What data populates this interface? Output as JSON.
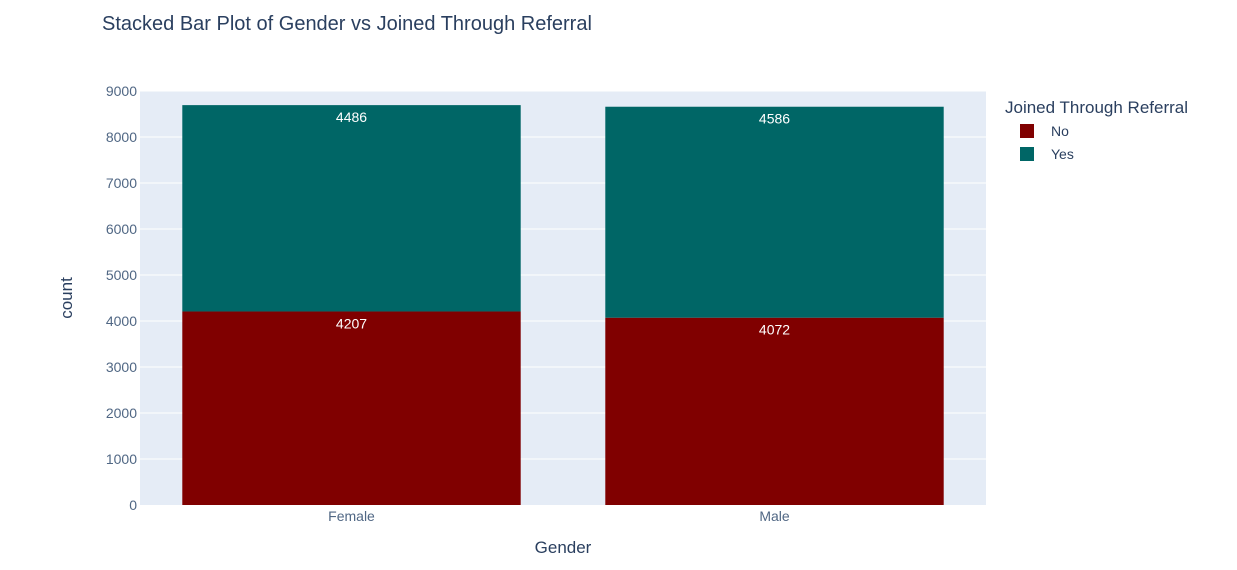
{
  "chart_data": {
    "type": "bar",
    "barmode": "stack",
    "title": "Stacked Bar Plot of Gender vs Joined Through Referral",
    "xlabel": "Gender",
    "ylabel": "count",
    "categories": [
      "Female",
      "Male"
    ],
    "series": [
      {
        "name": "No",
        "values": [
          4207,
          4072
        ],
        "color": "#800000"
      },
      {
        "name": "Yes",
        "values": [
          4486,
          4586
        ],
        "color": "#006666"
      }
    ],
    "ylim": [
      0,
      9000
    ],
    "yticks": [
      0,
      1000,
      2000,
      3000,
      4000,
      5000,
      6000,
      7000,
      8000,
      9000
    ],
    "grid": true,
    "legend": {
      "title": "Joined Through Referral",
      "placement": "top-right"
    },
    "plot_background": "#e5ecf6"
  }
}
